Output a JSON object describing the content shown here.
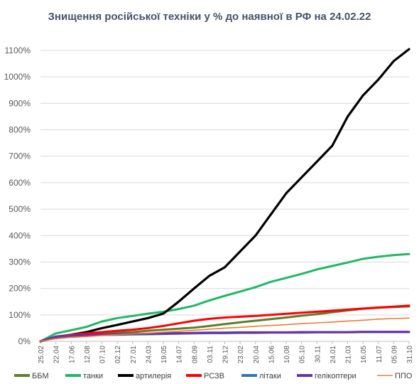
{
  "chart_data": {
    "type": "line",
    "title": "Знищення російської техніки у % до наявної в РФ на 24.02.22",
    "xlabel": "",
    "ylabel": "",
    "ylim": [
      0,
      1100
    ],
    "y_ticks": [
      "0%",
      "100%",
      "200%",
      "300%",
      "400%",
      "500%",
      "600%",
      "700%",
      "800%",
      "900%",
      "1000%",
      "1100%"
    ],
    "x": [
      "25.02",
      "22.04",
      "17.06",
      "12.08",
      "07.10",
      "02.12",
      "27.01",
      "24.03",
      "19.05",
      "14.07",
      "08.09",
      "03.11",
      "29.12",
      "23.02",
      "20.04",
      "15.06",
      "10.08",
      "05.10",
      "30.11",
      "24.01",
      "21.03",
      "16.05",
      "11.07",
      "05.09",
      "31.10"
    ],
    "grid": true,
    "legend_position": "bottom",
    "series": [
      {
        "name": "ББМ",
        "color": "#5b7f2e",
        "values": [
          0,
          16,
          22,
          27,
          30,
          33,
          35,
          40,
          44,
          48,
          52,
          58,
          65,
          72,
          78,
          84,
          90,
          97,
          103,
          110,
          117,
          123,
          127,
          130,
          132
        ]
      },
      {
        "name": "танки",
        "color": "#1fb866",
        "values": [
          0,
          30,
          42,
          55,
          75,
          88,
          96,
          105,
          112,
          122,
          135,
          155,
          172,
          188,
          205,
          225,
          240,
          255,
          272,
          285,
          298,
          312,
          320,
          326,
          330
        ]
      },
      {
        "name": "артилерія",
        "color": "#000000",
        "values": [
          0,
          15,
          25,
          35,
          50,
          62,
          75,
          88,
          105,
          150,
          200,
          248,
          280,
          340,
          400,
          480,
          560,
          620,
          680,
          740,
          850,
          930,
          990,
          1060,
          1105
        ]
      },
      {
        "name": "РСЗВ",
        "color": "#ff0000",
        "values": [
          0,
          18,
          25,
          30,
          35,
          40,
          44,
          50,
          58,
          68,
          78,
          85,
          90,
          93,
          96,
          100,
          104,
          108,
          112,
          116,
          120,
          124,
          128,
          131,
          135
        ]
      },
      {
        "name": "літаки",
        "color": "#2e75b6",
        "values": [
          0,
          17,
          20,
          22,
          24,
          25,
          26,
          27,
          28,
          29,
          30,
          31,
          31,
          32,
          32,
          33,
          33,
          33,
          34,
          34,
          34,
          35,
          35,
          35,
          35
        ]
      },
      {
        "name": "гелікоптери",
        "color": "#7030a0",
        "values": [
          0,
          18,
          22,
          24,
          26,
          27,
          28,
          29,
          30,
          31,
          32,
          33,
          33,
          34,
          34,
          34,
          34,
          35,
          35,
          35,
          35,
          36,
          36,
          36,
          36
        ]
      },
      {
        "name": "ППО",
        "color": "#ed7d31",
        "values": [
          0,
          10,
          15,
          18,
          22,
          25,
          28,
          31,
          35,
          38,
          42,
          46,
          50,
          53,
          57,
          60,
          63,
          67,
          70,
          73,
          77,
          80,
          84,
          86,
          88
        ]
      }
    ]
  }
}
